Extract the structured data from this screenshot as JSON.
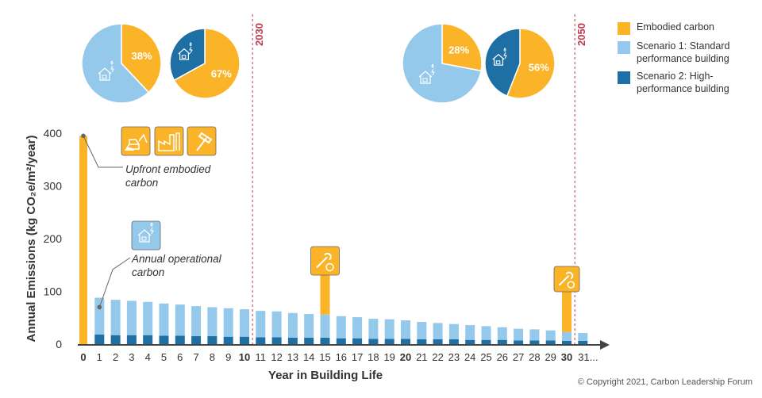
{
  "colors": {
    "embodied": "#fbb428",
    "scenario1": "#95c9ec",
    "scenario2": "#1d6fa4",
    "marker_line": "#c0394b",
    "axis": "#444444"
  },
  "legend": {
    "items": [
      {
        "key": "embodied",
        "label": "Embodied carbon",
        "color": "#fbb428"
      },
      {
        "key": "scenario1",
        "label": "Scenario 1: Standard performance building",
        "color": "#95c9ec"
      },
      {
        "key": "scenario2",
        "label": "Scenario 2: High-performance building",
        "color": "#1d6fa4"
      }
    ]
  },
  "copyright": "© Copyright 2021, Carbon Leadership Forum",
  "chart_data": {
    "type": "bar",
    "xlabel": "Year in Building Life",
    "ylabel": "Annual Emissions (kg CO₂e/m²/year)",
    "ylim": [
      0,
      400
    ],
    "yticks": [
      0,
      100,
      200,
      300,
      400
    ],
    "categories": [
      "0",
      "1",
      "2",
      "3",
      "4",
      "5",
      "6",
      "7",
      "8",
      "9",
      "10",
      "11",
      "12",
      "13",
      "14",
      "15",
      "16",
      "17",
      "18",
      "19",
      "20",
      "21",
      "22",
      "23",
      "24",
      "25",
      "26",
      "27",
      "28",
      "29",
      "30",
      "31..."
    ],
    "bold_categories": [
      "0",
      "10",
      "20",
      "30"
    ],
    "series": [
      {
        "name": "Scenario 2: High-performance building",
        "key": "scenario2",
        "values": [
          0,
          18,
          17,
          17,
          17,
          16,
          16,
          15,
          15,
          14,
          14,
          13,
          13,
          12,
          12,
          12,
          11,
          11,
          10,
          10,
          10,
          9,
          9,
          9,
          8,
          8,
          8,
          7,
          7,
          7,
          6,
          6
        ]
      },
      {
        "name": "Scenario 1: Standard performance building",
        "key": "scenario1",
        "values": [
          0,
          70,
          67,
          65,
          63,
          61,
          59,
          57,
          55,
          54,
          52,
          50,
          49,
          47,
          45,
          44,
          42,
          40,
          38,
          37,
          35,
          33,
          31,
          29,
          28,
          26,
          24,
          22,
          21,
          19,
          17,
          15
        ]
      },
      {
        "name": "Embodied carbon",
        "key": "embodied",
        "values": [
          395,
          0,
          0,
          0,
          0,
          0,
          0,
          0,
          0,
          0,
          0,
          0,
          0,
          0,
          0,
          115,
          0,
          0,
          0,
          0,
          0,
          0,
          0,
          0,
          0,
          0,
          0,
          0,
          0,
          0,
          85,
          0
        ]
      }
    ],
    "markers": [
      {
        "label": "2030",
        "at_year": 10.5
      },
      {
        "label": "2050",
        "at_year": 30.5
      }
    ],
    "annotations": [
      {
        "text": [
          "Upfront embodied",
          "carbon"
        ],
        "target_year": 0,
        "target_value": 395,
        "icons": [
          "excavator-icon",
          "factory-icon",
          "hammer-icon"
        ]
      },
      {
        "text": [
          "Annual operational",
          "carbon"
        ],
        "target_year": 1,
        "target_value": 70,
        "icons": [
          "house-energy-icon"
        ]
      }
    ],
    "maintenance_icons": [
      {
        "year": 15,
        "icon": "wrench-icon"
      },
      {
        "year": 30,
        "icon": "wrench-icon"
      }
    ],
    "pies": [
      {
        "name": "2030 Scenario 1",
        "slices": [
          {
            "key": "embodied",
            "value": 38,
            "label": "38%"
          },
          {
            "key": "scenario1",
            "value": 62,
            "label": ""
          }
        ]
      },
      {
        "name": "2030 Scenario 2",
        "slices": [
          {
            "key": "embodied",
            "value": 67,
            "label": "67%"
          },
          {
            "key": "scenario2",
            "value": 33,
            "label": ""
          }
        ]
      },
      {
        "name": "2050 Scenario 1",
        "slices": [
          {
            "key": "embodied",
            "value": 28,
            "label": "28%"
          },
          {
            "key": "scenario1",
            "value": 72,
            "label": ""
          }
        ]
      },
      {
        "name": "2050 Scenario 2",
        "slices": [
          {
            "key": "embodied",
            "value": 56,
            "label": "56%"
          },
          {
            "key": "scenario2",
            "value": 44,
            "label": ""
          }
        ]
      }
    ]
  }
}
